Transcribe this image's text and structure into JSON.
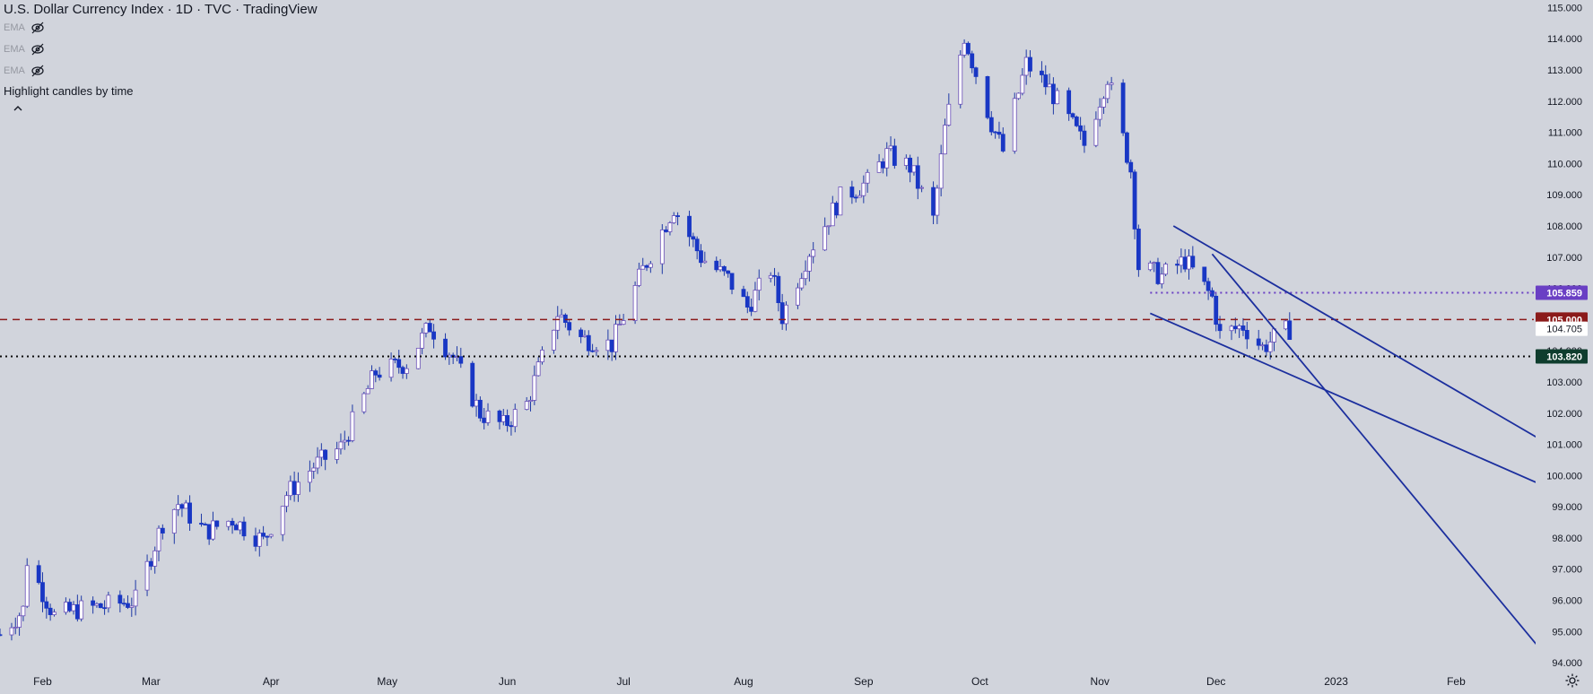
{
  "header": {
    "title": "U.S. Dollar Currency Index · 1D · TVC · TradingView",
    "indicators": [
      "EMA",
      "EMA",
      "EMA"
    ],
    "highlight_label": "Highlight candles by time"
  },
  "colors": {
    "background": "#d1d4dc",
    "up_candle_fill": "#ffffff",
    "up_candle_border": "#6a4fb8",
    "down_candle_fill": "#1937c4",
    "wick": "#1f3aa6",
    "trendline": "#1c2f9e",
    "resistance_line": "#8b1a1a",
    "support_line": "#0b0b0b",
    "label_105859": "#6a3fc4",
    "label_105000": "#8b1a1a",
    "label_103820": "#0f3d2e",
    "label_104705": "#ffffff"
  },
  "chart_data": {
    "type": "candlestick",
    "title": "U.S. Dollar Currency Index",
    "timeframe": "1D",
    "x_tick_labels": [
      "Feb",
      "Mar",
      "Apr",
      "May",
      "Jun",
      "Jul",
      "Aug",
      "Sep",
      "Oct",
      "Nov",
      "Dec",
      "2023",
      "Feb"
    ],
    "y_tick_labels": [
      "94.000",
      "95.000",
      "96.000",
      "97.000",
      "98.000",
      "99.000",
      "100.000",
      "101.000",
      "102.000",
      "103.000",
      "104.000",
      "105.000",
      "106.000",
      "107.000",
      "108.000",
      "109.000",
      "110.000",
      "111.000",
      "112.000",
      "113.000",
      "114.000",
      "115.000"
    ],
    "ylim": [
      93.4,
      115.3
    ],
    "date_range": [
      "2022-01-21",
      "2023-02-28"
    ],
    "candle_anchors": [
      {
        "date": "2022-01-21",
        "close": 94.9
      },
      {
        "date": "2022-01-27",
        "close": 95.7
      },
      {
        "date": "2022-01-28",
        "close": 97.3
      },
      {
        "date": "2022-02-04",
        "close": 95.5
      },
      {
        "date": "2022-02-10",
        "close": 95.7
      },
      {
        "date": "2022-02-16",
        "close": 95.8
      },
      {
        "date": "2022-02-25",
        "close": 96.0
      },
      {
        "date": "2022-03-04",
        "close": 98.5
      },
      {
        "date": "2022-03-08",
        "close": 99.1
      },
      {
        "date": "2022-03-15",
        "close": 98.2
      },
      {
        "date": "2022-03-22",
        "close": 98.6
      },
      {
        "date": "2022-03-30",
        "close": 97.9
      },
      {
        "date": "2022-04-05",
        "close": 99.4
      },
      {
        "date": "2022-04-12",
        "close": 100.3
      },
      {
        "date": "2022-04-19",
        "close": 100.9
      },
      {
        "date": "2022-04-28",
        "close": 103.3
      },
      {
        "date": "2022-05-06",
        "close": 103.6
      },
      {
        "date": "2022-05-12",
        "close": 104.8
      },
      {
        "date": "2022-05-18",
        "close": 103.8
      },
      {
        "date": "2022-05-25",
        "close": 102.0
      },
      {
        "date": "2022-05-31",
        "close": 101.6
      },
      {
        "date": "2022-06-06",
        "close": 102.3
      },
      {
        "date": "2022-06-14",
        "close": 105.2
      },
      {
        "date": "2022-06-20",
        "close": 104.4
      },
      {
        "date": "2022-06-28",
        "close": 104.2
      },
      {
        "date": "2022-07-06",
        "close": 106.6
      },
      {
        "date": "2022-07-14",
        "close": 108.6
      },
      {
        "date": "2022-07-21",
        "close": 107.0
      },
      {
        "date": "2022-07-28",
        "close": 106.3
      },
      {
        "date": "2022-08-02",
        "close": 105.4
      },
      {
        "date": "2022-08-08",
        "close": 106.6
      },
      {
        "date": "2022-08-11",
        "close": 105.1
      },
      {
        "date": "2022-08-18",
        "close": 107.2
      },
      {
        "date": "2022-08-26",
        "close": 108.9
      },
      {
        "date": "2022-09-02",
        "close": 109.4
      },
      {
        "date": "2022-09-07",
        "close": 110.3
      },
      {
        "date": "2022-09-13",
        "close": 109.9
      },
      {
        "date": "2022-09-19",
        "close": 108.2
      },
      {
        "date": "2022-09-22",
        "close": 111.1
      },
      {
        "date": "2022-09-27",
        "close": 114.1
      },
      {
        "date": "2022-10-04",
        "close": 111.3
      },
      {
        "date": "2022-10-07",
        "close": 110.4
      },
      {
        "date": "2022-10-13",
        "close": 113.2
      },
      {
        "date": "2022-10-19",
        "close": 112.4
      },
      {
        "date": "2022-10-25",
        "close": 111.2
      },
      {
        "date": "2022-10-28",
        "close": 110.6
      },
      {
        "date": "2022-11-03",
        "close": 112.8
      },
      {
        "date": "2022-11-09",
        "close": 109.8
      },
      {
        "date": "2022-11-11",
        "close": 106.7
      },
      {
        "date": "2022-11-17",
        "close": 106.4
      },
      {
        "date": "2022-11-23",
        "close": 106.9
      },
      {
        "date": "2022-11-30",
        "close": 105.7
      },
      {
        "date": "2022-12-02",
        "close": 104.5
      },
      {
        "date": "2022-12-08",
        "close": 104.8
      },
      {
        "date": "2022-12-13",
        "close": 104.1
      },
      {
        "date": "2022-12-16",
        "close": 104.4
      },
      {
        "date": "2022-12-20",
        "close": 104.7
      }
    ],
    "horizontal_lines": [
      {
        "price": 105.859,
        "label": "105.859",
        "style": "dotted",
        "color": "#6a3fc4"
      },
      {
        "price": 105.0,
        "label": "105.000",
        "style": "dashed",
        "color": "#8b1a1a"
      },
      {
        "price": 103.82,
        "label": "103.820",
        "style": "dotted",
        "color": "#0b0b0b"
      }
    ],
    "last_price_label": "104.705",
    "trendlines": [
      {
        "from": {
          "date": "2022-11-20",
          "price": 108.0
        },
        "to": {
          "date": "2023-03-08",
          "price": 100.2
        }
      },
      {
        "from": {
          "date": "2022-11-14",
          "price": 105.2
        },
        "to": {
          "date": "2023-03-08",
          "price": 99.0
        }
      },
      {
        "from": {
          "date": "2022-11-30",
          "price": 107.1
        },
        "to": {
          "date": "2023-03-01",
          "price": 93.5
        }
      }
    ],
    "grid": false,
    "legend": "top-left"
  }
}
